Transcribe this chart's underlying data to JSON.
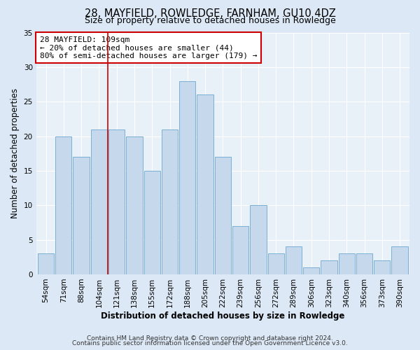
{
  "title": "28, MAYFIELD, ROWLEDGE, FARNHAM, GU10 4DZ",
  "subtitle": "Size of property relative to detached houses in Rowledge",
  "xlabel": "Distribution of detached houses by size in Rowledge",
  "ylabel": "Number of detached properties",
  "bar_labels": [
    "54sqm",
    "71sqm",
    "88sqm",
    "104sqm",
    "121sqm",
    "138sqm",
    "155sqm",
    "172sqm",
    "188sqm",
    "205sqm",
    "222sqm",
    "239sqm",
    "256sqm",
    "272sqm",
    "289sqm",
    "306sqm",
    "323sqm",
    "340sqm",
    "356sqm",
    "373sqm",
    "390sqm"
  ],
  "bar_heights": [
    3,
    20,
    17,
    21,
    21,
    20,
    15,
    21,
    28,
    26,
    17,
    7,
    10,
    3,
    4,
    1,
    2,
    3,
    3,
    2,
    4
  ],
  "bar_color": "#c5d8ec",
  "bar_edgecolor": "#7aafd4",
  "vline_x": 3.5,
  "vline_color": "#cc0000",
  "annotation_line1": "28 MAYFIELD: 109sqm",
  "annotation_line2": "← 20% of detached houses are smaller (44)",
  "annotation_line3": "80% of semi-detached houses are larger (179) →",
  "annotation_box_edgecolor": "#cc0000",
  "annotation_box_facecolor": "#ffffff",
  "ylim": [
    0,
    35
  ],
  "yticks": [
    0,
    5,
    10,
    15,
    20,
    25,
    30,
    35
  ],
  "footer1": "Contains HM Land Registry data © Crown copyright and database right 2024.",
  "footer2": "Contains public sector information licensed under the Open Government Licence v3.0.",
  "bg_color": "#dce8f5",
  "plot_bg_color": "#e8f0f8",
  "title_fontsize": 10.5,
  "subtitle_fontsize": 9,
  "axis_label_fontsize": 8.5,
  "tick_fontsize": 7.5,
  "footer_fontsize": 6.5,
  "annotation_fontsize": 8,
  "ylabel_fontsize": 8.5
}
